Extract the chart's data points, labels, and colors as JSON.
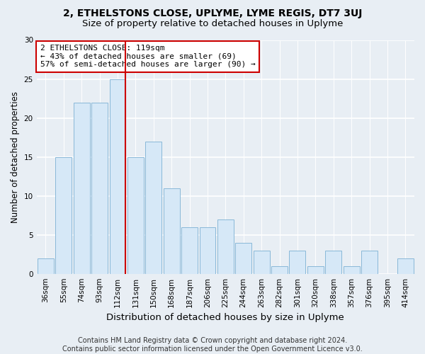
{
  "title1": "2, ETHELSTONS CLOSE, UPLYME, LYME REGIS, DT7 3UJ",
  "title2": "Size of property relative to detached houses in Uplyme",
  "xlabel": "Distribution of detached houses by size in Uplyme",
  "ylabel": "Number of detached properties",
  "categories": [
    "36sqm",
    "55sqm",
    "74sqm",
    "93sqm",
    "112sqm",
    "131sqm",
    "150sqm",
    "168sqm",
    "187sqm",
    "206sqm",
    "225sqm",
    "244sqm",
    "263sqm",
    "282sqm",
    "301sqm",
    "320sqm",
    "338sqm",
    "357sqm",
    "376sqm",
    "395sqm",
    "414sqm"
  ],
  "values": [
    2,
    15,
    22,
    22,
    25,
    15,
    17,
    11,
    6,
    6,
    7,
    4,
    3,
    1,
    3,
    1,
    3,
    1,
    3,
    0,
    2
  ],
  "bar_color": "#d6e8f7",
  "bar_edge_color": "#89b8d8",
  "vline_x_index": 4,
  "vline_color": "#cc0000",
  "annotation_text": "2 ETHELSTONS CLOSE: 119sqm\n← 43% of detached houses are smaller (69)\n57% of semi-detached houses are larger (90) →",
  "annotation_box_color": "white",
  "annotation_box_edge_color": "#cc0000",
  "ylim": [
    0,
    30
  ],
  "yticks": [
    0,
    5,
    10,
    15,
    20,
    25,
    30
  ],
  "footer_text": "Contains HM Land Registry data © Crown copyright and database right 2024.\nContains public sector information licensed under the Open Government Licence v3.0.",
  "background_color": "#e8eef4",
  "grid_color": "white",
  "title1_fontsize": 10,
  "title2_fontsize": 9.5,
  "xlabel_fontsize": 9.5,
  "ylabel_fontsize": 8.5,
  "tick_fontsize": 7.5,
  "annotation_fontsize": 8,
  "footer_fontsize": 7
}
